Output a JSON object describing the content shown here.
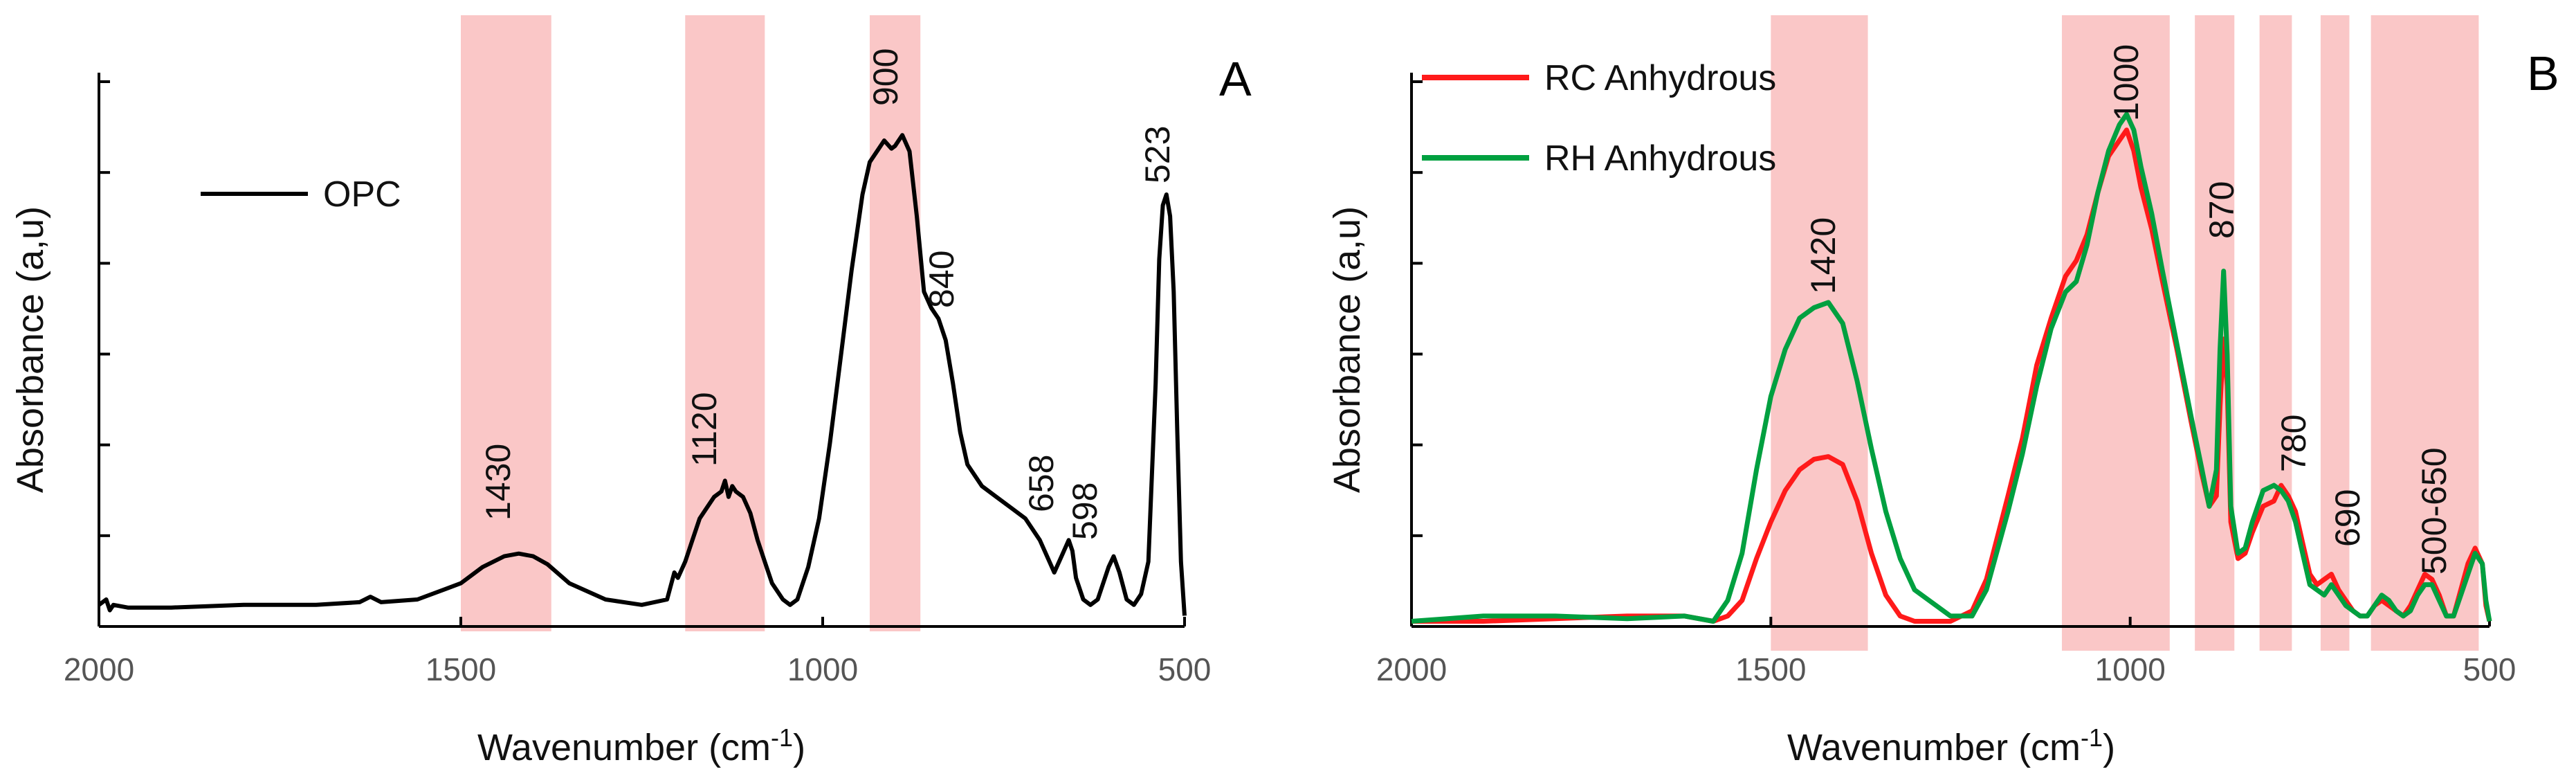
{
  "chart_data": [
    {
      "panel": "A",
      "type": "line",
      "xlabel": "Wavenumber (cm-1)",
      "xlabel_main": "Wavenumber (cm",
      "xlabel_sup": "-1",
      "xlabel_end": ")",
      "ylabel": "Absorbance (a,u)",
      "xlim": [
        2000,
        500
      ],
      "x_reversed": true,
      "ylim": [
        0,
        1
      ],
      "x_ticks": [
        2000,
        1500,
        1000,
        500
      ],
      "grid": false,
      "legend_position": "top-left",
      "highlight_bands": [
        [
          1500,
          1375
        ],
        [
          1190,
          1080
        ],
        [
          935,
          865
        ]
      ],
      "peak_labels": [
        "1430",
        "1120",
        "900",
        "840",
        "658",
        "598",
        "523"
      ],
      "series": [
        {
          "name": "OPC",
          "color": "#000000",
          "x": [
            2000,
            1990,
            1985,
            1980,
            1960,
            1900,
            1800,
            1700,
            1640,
            1625,
            1610,
            1560,
            1520,
            1500,
            1470,
            1440,
            1420,
            1400,
            1380,
            1350,
            1300,
            1250,
            1215,
            1205,
            1200,
            1190,
            1180,
            1170,
            1160,
            1150,
            1140,
            1135,
            1130,
            1125,
            1120,
            1110,
            1100,
            1090,
            1080,
            1070,
            1055,
            1045,
            1035,
            1020,
            1005,
            990,
            975,
            960,
            945,
            935,
            925,
            915,
            905,
            900,
            895,
            890,
            880,
            870,
            860,
            850,
            840,
            830,
            820,
            810,
            800,
            780,
            760,
            740,
            720,
            700,
            680,
            670,
            660,
            655,
            650,
            640,
            630,
            620,
            605,
            598,
            590,
            580,
            570,
            560,
            550,
            540,
            535,
            530,
            525,
            520,
            515,
            510,
            505,
            500
          ],
          "y": [
            0.04,
            0.05,
            0.03,
            0.04,
            0.035,
            0.035,
            0.04,
            0.04,
            0.045,
            0.055,
            0.045,
            0.05,
            0.07,
            0.08,
            0.11,
            0.13,
            0.135,
            0.13,
            0.115,
            0.08,
            0.05,
            0.04,
            0.05,
            0.1,
            0.09,
            0.12,
            0.16,
            0.2,
            0.22,
            0.24,
            0.25,
            0.27,
            0.24,
            0.26,
            0.25,
            0.24,
            0.21,
            0.16,
            0.12,
            0.08,
            0.05,
            0.04,
            0.05,
            0.11,
            0.2,
            0.34,
            0.5,
            0.66,
            0.8,
            0.86,
            0.88,
            0.9,
            0.885,
            0.89,
            0.9,
            0.91,
            0.88,
            0.76,
            0.62,
            0.59,
            0.57,
            0.53,
            0.45,
            0.36,
            0.3,
            0.26,
            0.24,
            0.22,
            0.2,
            0.16,
            0.1,
            0.13,
            0.16,
            0.14,
            0.09,
            0.05,
            0.04,
            0.05,
            0.11,
            0.13,
            0.1,
            0.05,
            0.04,
            0.06,
            0.12,
            0.45,
            0.68,
            0.78,
            0.8,
            0.76,
            0.62,
            0.36,
            0.12,
            0.02
          ]
        }
      ]
    },
    {
      "panel": "B",
      "type": "line",
      "xlabel": "Wavenumber (cm-1)",
      "xlabel_main": "Wavenumber (cm",
      "xlabel_sup": "-1",
      "xlabel_end": ")",
      "ylabel": "Absorbance (a,u)",
      "xlim": [
        2000,
        500
      ],
      "x_reversed": true,
      "ylim": [
        0,
        1
      ],
      "x_ticks": [
        2000,
        1500,
        1000,
        500
      ],
      "grid": false,
      "legend_position": "top-left",
      "highlight_bands": [
        [
          1500,
          1365
        ],
        [
          1095,
          945
        ],
        [
          910,
          855
        ],
        [
          820,
          775
        ],
        [
          735,
          695
        ],
        [
          665,
          515
        ]
      ],
      "peak_labels": [
        "1420",
        "1000",
        "870",
        "780",
        "690",
        "500-650"
      ],
      "series": [
        {
          "name": "RC Anhydrous",
          "color": "#ff1a1a",
          "x": [
            2000,
            1950,
            1900,
            1800,
            1700,
            1620,
            1580,
            1560,
            1540,
            1520,
            1500,
            1480,
            1460,
            1440,
            1420,
            1400,
            1380,
            1360,
            1340,
            1320,
            1300,
            1250,
            1220,
            1200,
            1170,
            1150,
            1130,
            1110,
            1090,
            1075,
            1060,
            1045,
            1030,
            1015,
            1005,
            995,
            985,
            970,
            955,
            935,
            915,
            900,
            890,
            880,
            875,
            870,
            865,
            860,
            850,
            840,
            830,
            815,
            800,
            790,
            780,
            770,
            760,
            750,
            740,
            730,
            720,
            710,
            700,
            690,
            680,
            670,
            660,
            650,
            640,
            630,
            620,
            610,
            600,
            590,
            580,
            570,
            560,
            550,
            540,
            530,
            520,
            510,
            505,
            500
          ],
          "y": [
            0.01,
            0.01,
            0.01,
            0.015,
            0.02,
            0.02,
            0.01,
            0.02,
            0.05,
            0.13,
            0.2,
            0.26,
            0.3,
            0.32,
            0.325,
            0.31,
            0.24,
            0.14,
            0.06,
            0.02,
            0.01,
            0.01,
            0.03,
            0.09,
            0.25,
            0.36,
            0.5,
            0.59,
            0.67,
            0.7,
            0.75,
            0.83,
            0.9,
            0.93,
            0.95,
            0.91,
            0.84,
            0.76,
            0.66,
            0.53,
            0.39,
            0.29,
            0.23,
            0.25,
            0.42,
            0.55,
            0.46,
            0.2,
            0.13,
            0.14,
            0.18,
            0.23,
            0.24,
            0.27,
            0.25,
            0.22,
            0.16,
            0.1,
            0.08,
            0.09,
            0.1,
            0.07,
            0.05,
            0.03,
            0.02,
            0.02,
            0.04,
            0.05,
            0.04,
            0.03,
            0.02,
            0.04,
            0.07,
            0.1,
            0.09,
            0.06,
            0.02,
            0.02,
            0.07,
            0.12,
            0.15,
            0.12,
            0.04,
            0.01
          ]
        },
        {
          "name": "RH Anhydrous",
          "color": "#00a040",
          "x": [
            2000,
            1950,
            1900,
            1800,
            1700,
            1620,
            1580,
            1560,
            1540,
            1520,
            1500,
            1480,
            1460,
            1440,
            1420,
            1400,
            1380,
            1360,
            1340,
            1320,
            1300,
            1250,
            1220,
            1200,
            1170,
            1150,
            1130,
            1110,
            1090,
            1075,
            1060,
            1045,
            1030,
            1015,
            1005,
            995,
            985,
            970,
            955,
            935,
            915,
            900,
            890,
            880,
            875,
            870,
            865,
            860,
            850,
            840,
            830,
            815,
            800,
            790,
            780,
            770,
            760,
            750,
            740,
            730,
            720,
            710,
            700,
            690,
            680,
            670,
            660,
            650,
            640,
            630,
            620,
            610,
            600,
            590,
            580,
            570,
            560,
            550,
            540,
            530,
            520,
            510,
            505,
            500
          ],
          "y": [
            0.01,
            0.015,
            0.02,
            0.02,
            0.015,
            0.02,
            0.01,
            0.05,
            0.14,
            0.3,
            0.44,
            0.53,
            0.59,
            0.61,
            0.62,
            0.58,
            0.47,
            0.34,
            0.22,
            0.13,
            0.07,
            0.02,
            0.02,
            0.07,
            0.22,
            0.33,
            0.46,
            0.57,
            0.64,
            0.66,
            0.73,
            0.83,
            0.91,
            0.96,
            0.98,
            0.95,
            0.88,
            0.79,
            0.68,
            0.54,
            0.4,
            0.3,
            0.23,
            0.3,
            0.53,
            0.68,
            0.52,
            0.23,
            0.14,
            0.15,
            0.2,
            0.26,
            0.27,
            0.26,
            0.24,
            0.2,
            0.14,
            0.08,
            0.07,
            0.06,
            0.08,
            0.06,
            0.04,
            0.03,
            0.02,
            0.02,
            0.04,
            0.06,
            0.05,
            0.03,
            0.02,
            0.03,
            0.06,
            0.08,
            0.08,
            0.05,
            0.02,
            0.02,
            0.06,
            0.1,
            0.14,
            0.12,
            0.05,
            0.01
          ]
        }
      ]
    }
  ]
}
